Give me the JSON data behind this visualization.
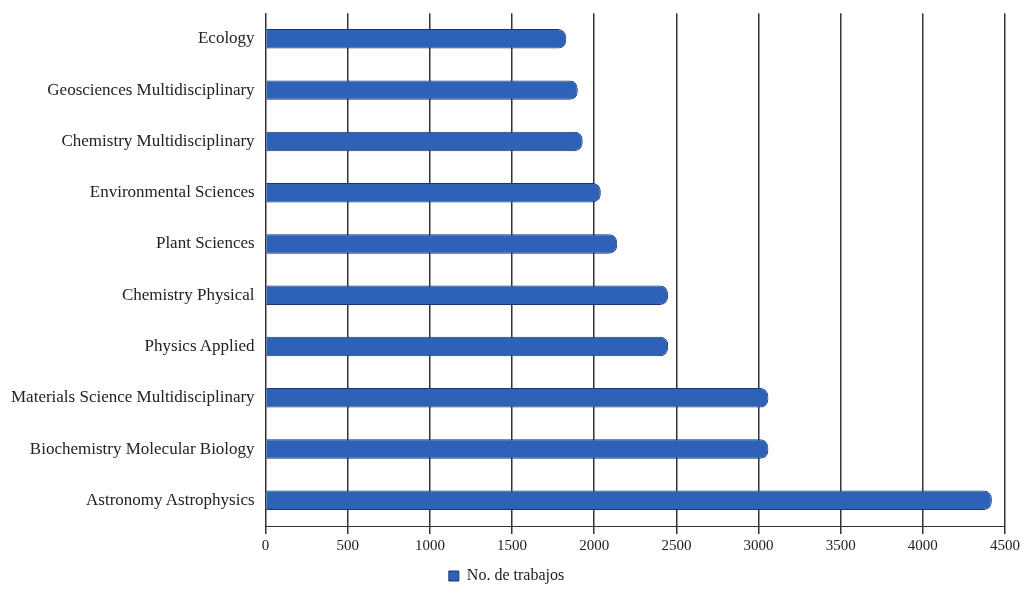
{
  "chart_data": {
    "type": "bar",
    "orientation": "horizontal",
    "categories": [
      "Ecology",
      "Geosciences Multidisciplinary",
      "Chemistry Multidisciplinary",
      "Environmental Sciences",
      "Plant Sciences",
      "Chemistry Physical",
      "Physics Applied",
      "Materials Science Multidisciplinary",
      "Biochemistry Molecular Biology",
      "Astronomy Astrophysics"
    ],
    "series": [
      {
        "name": "No. de trabajos",
        "color": "#2e62b8",
        "values": [
          1830,
          1900,
          1930,
          2040,
          2140,
          2450,
          2450,
          3060,
          3060,
          4420
        ]
      }
    ],
    "xlim": [
      0,
      4500
    ],
    "xticks": [
      0,
      500,
      1000,
      1500,
      2000,
      2500,
      3000,
      3500,
      4000,
      4500
    ],
    "grid": "x",
    "legend": "bottom"
  }
}
